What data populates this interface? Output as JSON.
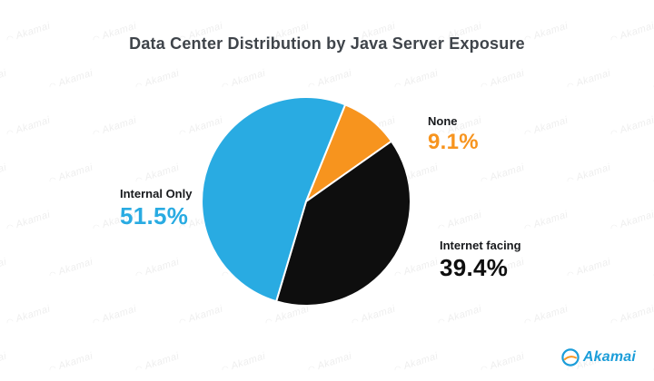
{
  "title": "Data Center Distribution by Java Server Exposure",
  "watermark": {
    "text": "Akamai"
  },
  "logo": {
    "wordmark": "Akamai"
  },
  "chart_data": {
    "type": "pie",
    "title": "Data Center Distribution by Java Server Exposure",
    "start_angle_deg": 22,
    "draw_direction": "clockwise",
    "legend_position": "labels-around-pie",
    "background_watermark": "Akamai",
    "slices": [
      {
        "label": "None",
        "value": 9.1,
        "display": "9.1%",
        "color": "#F7941E"
      },
      {
        "label": "Internet facing",
        "value": 39.4,
        "display": "39.4%",
        "color": "#0E0E0E"
      },
      {
        "label": "Internal Only",
        "value": 51.5,
        "display": "51.5%",
        "color": "#29ABE2"
      }
    ]
  }
}
